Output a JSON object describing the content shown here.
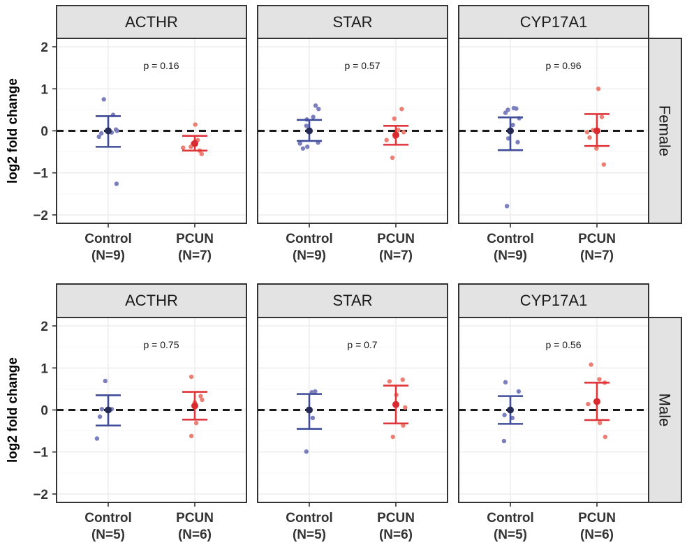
{
  "chart_data": {
    "type": "scatter",
    "title": "",
    "ylabel": "log2 fold change",
    "ylim": [
      -2.2,
      2.2
    ],
    "yticks": [
      -2,
      -1,
      0,
      1,
      2
    ],
    "ytick_labels": [
      "−2",
      "−1",
      "0",
      "1",
      "2"
    ],
    "reference_line_y": 0,
    "groups": [
      "Control",
      "PCUN"
    ],
    "colors": {
      "control_bar": "#3f4c9a",
      "control_point": "#7b7fbd",
      "control_mean": "#262b55",
      "pcun_bar": "#e0353a",
      "pcun_point": "#ec7f72",
      "pcun_mean": "#d92b2f"
    },
    "rows": [
      {
        "label": "Female",
        "x_labels": [
          "Control",
          "(N=9)",
          "PCUN",
          "(N=7)"
        ],
        "panels": [
          {
            "gene": "ACTHR",
            "p_value": "p = 0.16",
            "control": {
              "mean": 0.0,
              "upper": 0.35,
              "lower": -0.38,
              "points": [
                {
                  "x": -0.09,
                  "y": 0.75
                },
                {
                  "x": 0.1,
                  "y": 0.38
                },
                {
                  "x": 0.01,
                  "y": 0.02
                },
                {
                  "x": 0.16,
                  "y": 0.03
                },
                {
                  "x": -0.14,
                  "y": -0.06
                },
                {
                  "x": -0.19,
                  "y": -0.14
                },
                {
                  "x": 0.07,
                  "y": -0.04
                },
                {
                  "x": 0.18,
                  "y": 0.0
                },
                {
                  "x": 0.17,
                  "y": -1.26
                }
              ]
            },
            "pcun": {
              "mean": -0.3,
              "upper": -0.12,
              "lower": -0.47,
              "points": [
                {
                  "x": 0.01,
                  "y": 0.15
                },
                {
                  "x": -0.24,
                  "y": -0.4
                },
                {
                  "x": 0.1,
                  "y": -0.47
                },
                {
                  "x": 0.14,
                  "y": -0.55
                },
                {
                  "x": -0.04,
                  "y": -0.3
                },
                {
                  "x": 0.06,
                  "y": -0.22
                },
                {
                  "x": -0.08,
                  "y": -0.38
                }
              ]
            }
          },
          {
            "gene": "STAR",
            "p_value": "p = 0.57",
            "control": {
              "mean": 0.0,
              "upper": 0.26,
              "lower": -0.24,
              "points": [
                {
                  "x": 0.13,
                  "y": 0.6
                },
                {
                  "x": 0.08,
                  "y": 0.33
                },
                {
                  "x": -0.05,
                  "y": 0.27
                },
                {
                  "x": -0.06,
                  "y": 0.12
                },
                {
                  "x": 0.19,
                  "y": 0.52
                },
                {
                  "x": -0.19,
                  "y": -0.3
                },
                {
                  "x": -0.13,
                  "y": -0.42
                },
                {
                  "x": -0.04,
                  "y": -0.38
                },
                {
                  "x": 0.18,
                  "y": -0.28
                }
              ]
            },
            "pcun": {
              "mean": -0.1,
              "upper": 0.12,
              "lower": -0.33,
              "points": [
                {
                  "x": 0.12,
                  "y": 0.52
                },
                {
                  "x": -0.03,
                  "y": 0.29
                },
                {
                  "x": -0.07,
                  "y": -0.64
                },
                {
                  "x": -0.19,
                  "y": -0.22
                },
                {
                  "x": 0.05,
                  "y": 0.02
                },
                {
                  "x": 0.16,
                  "y": -0.03
                },
                {
                  "x": -0.02,
                  "y": -0.14
                }
              ]
            }
          },
          {
            "gene": "CYP17A1",
            "p_value": "p = 0.96",
            "control": {
              "mean": 0.0,
              "upper": 0.32,
              "lower": -0.46,
              "points": [
                {
                  "x": 0.12,
                  "y": 0.53
                },
                {
                  "x": -0.05,
                  "y": 0.5
                },
                {
                  "x": 0.07,
                  "y": 0.54
                },
                {
                  "x": -0.1,
                  "y": 0.43
                },
                {
                  "x": 0.18,
                  "y": 0.3
                },
                {
                  "x": 0.05,
                  "y": 0.14
                },
                {
                  "x": 0.15,
                  "y": -0.27
                },
                {
                  "x": -0.04,
                  "y": -0.18
                },
                {
                  "x": -0.07,
                  "y": -1.79
                }
              ]
            },
            "pcun": {
              "mean": 0.0,
              "upper": 0.4,
              "lower": -0.36,
              "points": [
                {
                  "x": 0.03,
                  "y": 1.0
                },
                {
                  "x": -0.08,
                  "y": 0.02
                },
                {
                  "x": -0.15,
                  "y": -0.16
                },
                {
                  "x": -0.2,
                  "y": -0.03
                },
                {
                  "x": -0.01,
                  "y": -0.42
                },
                {
                  "x": 0.14,
                  "y": -0.8
                },
                {
                  "x": 0.1,
                  "y": 0.33
                }
              ]
            }
          }
        ]
      },
      {
        "label": "Male",
        "x_labels": [
          "Control",
          "(N=5)",
          "PCUN",
          "(N=6)"
        ],
        "panels": [
          {
            "gene": "ACTHR",
            "p_value": "p = 0.75",
            "control": {
              "mean": 0.0,
              "upper": 0.35,
              "lower": -0.37,
              "points": [
                {
                  "x": -0.06,
                  "y": 0.69
                },
                {
                  "x": -0.13,
                  "y": 0.02
                },
                {
                  "x": -0.17,
                  "y": -0.16
                },
                {
                  "x": -0.23,
                  "y": -0.68
                },
                {
                  "x": 0.07,
                  "y": 0.02
                }
              ]
            },
            "pcun": {
              "mean": 0.1,
              "upper": 0.43,
              "lower": -0.23,
              "points": [
                {
                  "x": -0.07,
                  "y": 0.79
                },
                {
                  "x": 0.15,
                  "y": 0.24
                },
                {
                  "x": 0.12,
                  "y": 0.33
                },
                {
                  "x": -0.07,
                  "y": -0.62
                },
                {
                  "x": 0.03,
                  "y": -0.31
                },
                {
                  "x": 0.0,
                  "y": 0.18
                }
              ]
            }
          },
          {
            "gene": "STAR",
            "p_value": "p = 0.7",
            "control": {
              "mean": 0.0,
              "upper": 0.38,
              "lower": -0.45,
              "points": [
                {
                  "x": 0.12,
                  "y": 0.44
                },
                {
                  "x": 0.05,
                  "y": 0.42
                },
                {
                  "x": 0.07,
                  "y": -0.19
                },
                {
                  "x": -0.06,
                  "y": -0.99
                },
                {
                  "x": -0.02,
                  "y": 0.02
                }
              ]
            },
            "pcun": {
              "mean": 0.13,
              "upper": 0.58,
              "lower": -0.32,
              "points": [
                {
                  "x": 0.14,
                  "y": 0.72
                },
                {
                  "x": -0.13,
                  "y": 0.68
                },
                {
                  "x": 0.01,
                  "y": 0.36
                },
                {
                  "x": 0.19,
                  "y": 0.06
                },
                {
                  "x": 0.15,
                  "y": -0.37
                },
                {
                  "x": -0.06,
                  "y": -0.64
                }
              ]
            }
          },
          {
            "gene": "CYP17A1",
            "p_value": "p = 0.56",
            "control": {
              "mean": 0.0,
              "upper": 0.33,
              "lower": -0.33,
              "points": [
                {
                  "x": -0.1,
                  "y": 0.66
                },
                {
                  "x": 0.17,
                  "y": 0.44
                },
                {
                  "x": -0.12,
                  "y": -0.12
                },
                {
                  "x": 0.04,
                  "y": -0.19
                },
                {
                  "x": -0.13,
                  "y": -0.74
                }
              ]
            },
            "pcun": {
              "mean": 0.2,
              "upper": 0.65,
              "lower": -0.24,
              "points": [
                {
                  "x": -0.12,
                  "y": 1.08
                },
                {
                  "x": 0.05,
                  "y": 0.73
                },
                {
                  "x": 0.16,
                  "y": 0.65
                },
                {
                  "x": -0.18,
                  "y": 0.14
                },
                {
                  "x": 0.06,
                  "y": -0.31
                },
                {
                  "x": 0.17,
                  "y": -0.64
                }
              ]
            }
          }
        ]
      }
    ]
  }
}
